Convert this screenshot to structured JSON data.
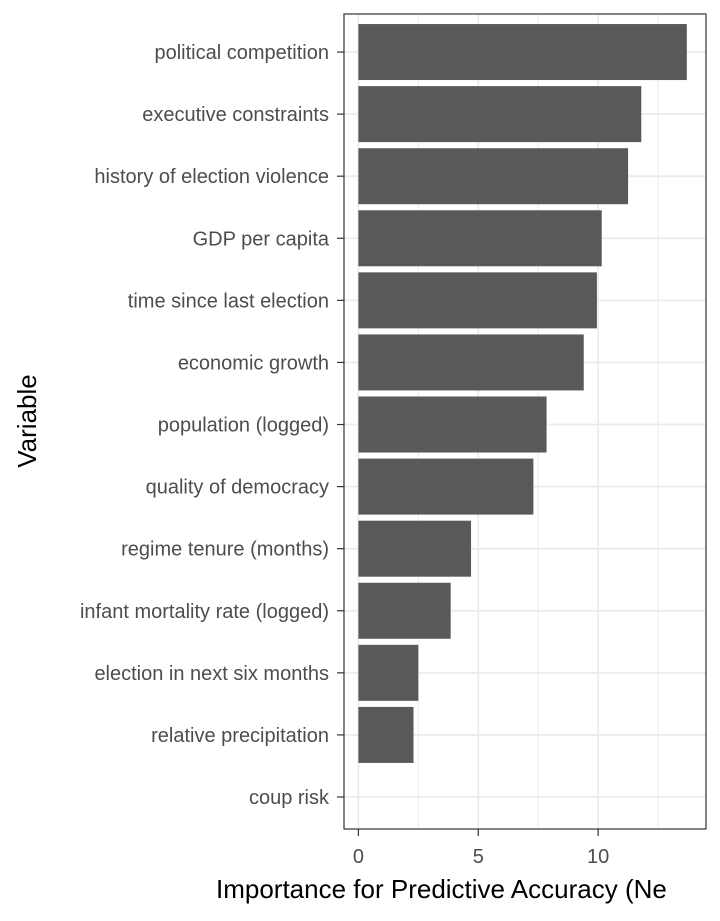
{
  "chart_data": {
    "type": "bar",
    "orientation": "horizontal",
    "xlabel": "Importance for Predictive Accuracy (Ne",
    "ylabel": "Variable",
    "xlim": [
      -0.6,
      14.5
    ],
    "x_ticks": [
      0,
      5,
      10
    ],
    "grid": true,
    "bar_color": "#595959",
    "grid_color": "#ebebeb",
    "categories": [
      "political competition",
      "executive constraints",
      "history of election violence",
      "GDP per capita",
      "time since last election",
      "economic growth",
      "population (logged)",
      "quality of democracy",
      "regime tenure (months)",
      "infant mortality rate (logged)",
      "election in next six months",
      "relative precipitation",
      "coup risk"
    ],
    "values": [
      13.7,
      11.8,
      11.25,
      10.15,
      9.95,
      9.4,
      7.85,
      7.3,
      4.7,
      3.85,
      2.5,
      2.3,
      0.0
    ]
  }
}
